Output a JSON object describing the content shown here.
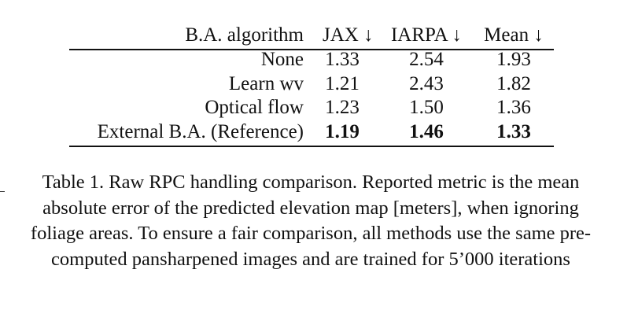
{
  "table": {
    "headers": [
      "B.A. algorithm",
      "JAX ↓",
      "IARPA ↓",
      "Mean ↓"
    ],
    "rows": [
      {
        "label": "None",
        "jax": "1.33",
        "iarpa": "2.54",
        "mean": "1.93",
        "bold": false
      },
      {
        "label": "Learn wv",
        "jax": "1.21",
        "iarpa": "2.43",
        "mean": "1.82",
        "bold": false
      },
      {
        "label": "Optical flow",
        "jax": "1.23",
        "iarpa": "1.50",
        "mean": "1.36",
        "bold": false
      },
      {
        "label": "External B.A. (Reference)",
        "jax": "1.19",
        "iarpa": "1.46",
        "mean": "1.33",
        "bold": true
      }
    ]
  },
  "caption": "Table 1. Raw RPC handling comparison. Reported metric is the mean absolute error of the predicted elevation map [meters], when ignoring foliage areas. To ensure a fair comparison, all methods use the same pre-computed pansharpened images and are trained for 5’000 iterations"
}
